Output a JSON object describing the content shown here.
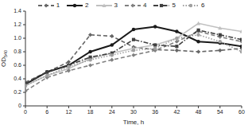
{
  "chart_data": {
    "type": "line",
    "x_label": "Time, h",
    "y_label": "OD540",
    "x": [
      0,
      6,
      12,
      18,
      24,
      30,
      36,
      42,
      48,
      54,
      60
    ],
    "xlim": [
      0,
      60
    ],
    "xticks": [
      0,
      6,
      12,
      18,
      24,
      30,
      36,
      42,
      48,
      54,
      60
    ],
    "ylim": [
      0,
      1.4
    ],
    "yticks": [
      0,
      0.2,
      0.4,
      0.6,
      0.8,
      {
        "value": 1,
        "label": "1.0"
      },
      1.2,
      1.4
    ],
    "grid": false,
    "legend": "top",
    "series": [
      {
        "name": "1",
        "color": "#666666",
        "line_style": "dashed",
        "marker": "diamond",
        "values": [
          0.35,
          0.5,
          0.65,
          1.05,
          1.03,
          0.87,
          0.83,
          0.82,
          0.8,
          0.82,
          0.85
        ]
      },
      {
        "name": "2",
        "color": "#1a1a1a",
        "line_style": "solid",
        "marker": "circle",
        "values": [
          0.32,
          0.5,
          0.6,
          0.8,
          0.9,
          1.13,
          1.17,
          1.1,
          0.95,
          0.93,
          0.88
        ]
      },
      {
        "name": "3",
        "color": "#c0c0c0",
        "line_style": "solid",
        "marker": "triangle",
        "values": [
          0.3,
          0.45,
          0.55,
          0.7,
          0.78,
          0.85,
          0.9,
          1.0,
          1.22,
          1.15,
          1.1
        ]
      },
      {
        "name": "4",
        "color": "#808080",
        "line_style": "dashed",
        "marker": "diamond",
        "values": [
          0.22,
          0.42,
          0.52,
          0.6,
          0.68,
          0.75,
          0.82,
          0.95,
          1.1,
          1.02,
          0.95
        ]
      },
      {
        "name": "5",
        "color": "#404040",
        "line_style": "dashdot",
        "marker": "square",
        "values": [
          0.33,
          0.5,
          0.6,
          0.72,
          0.78,
          0.98,
          0.9,
          0.88,
          1.12,
          1.05,
          0.98
        ]
      },
      {
        "name": "6",
        "color": "#a0a0a0",
        "line_style": "dotted",
        "marker": "circle",
        "values": [
          0.3,
          0.45,
          0.58,
          0.68,
          0.75,
          0.82,
          0.85,
          1.0,
          1.05,
          0.95,
          0.8
        ]
      }
    ]
  }
}
